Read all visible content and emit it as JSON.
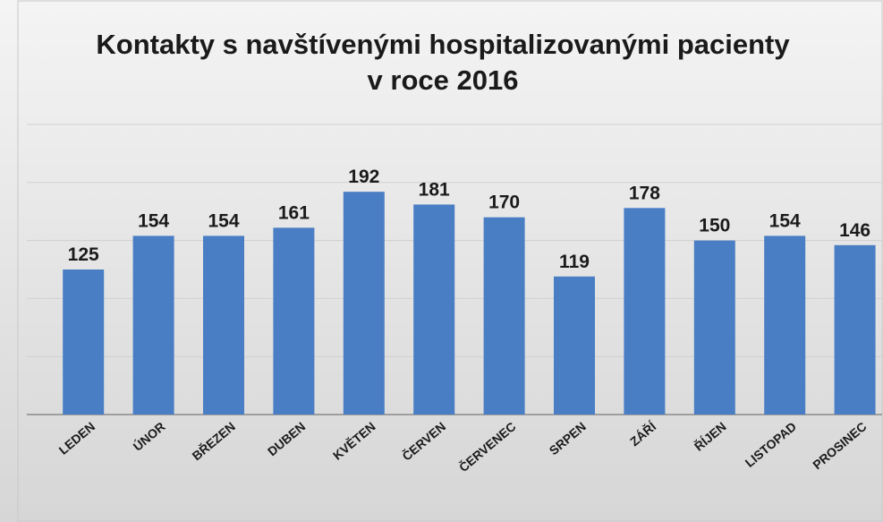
{
  "chart_data": {
    "type": "bar",
    "title": "Kontakty s navštívenými hospitalizovanými pacienty v roce 2016",
    "categories": [
      "LEDEN",
      "ÚNOR",
      "BŘEZEN",
      "DUBEN",
      "KVĚTEN",
      "ČERVEN",
      "ČERVENEC",
      "SRPEN",
      "ZÁŘÍ",
      "ŘÍJEN",
      "LISTOPAD",
      "PROSINEC"
    ],
    "values": [
      125,
      154,
      154,
      161,
      192,
      181,
      170,
      119,
      178,
      150,
      154,
      146
    ],
    "color": "#4a7ec4",
    "ylim": [
      0,
      250
    ],
    "yticks": [
      0,
      50,
      100,
      150,
      200,
      250
    ],
    "grid": true
  }
}
